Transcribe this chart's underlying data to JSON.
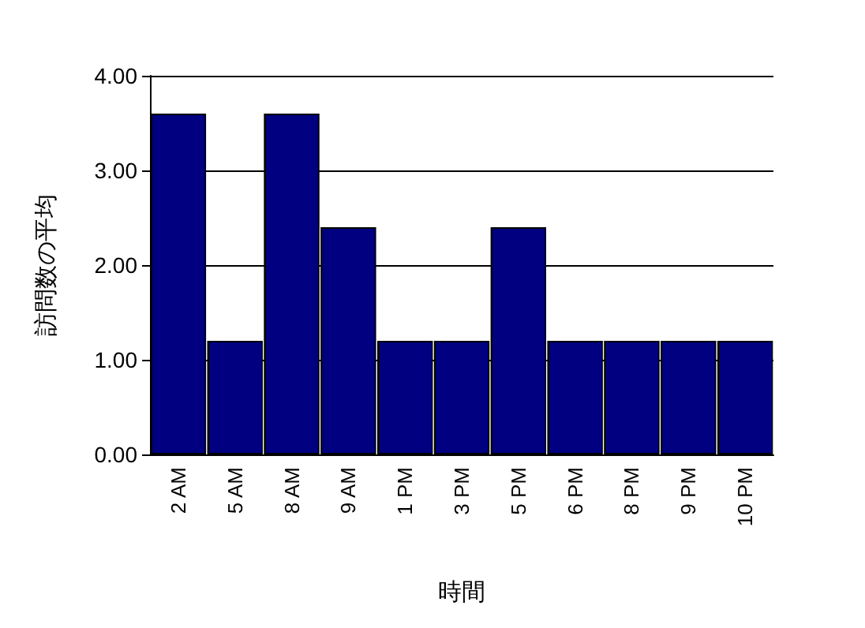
{
  "chart_data": {
    "type": "bar",
    "xlabel": "時間",
    "ylabel": "訪問数の平均",
    "categories": [
      "2 AM",
      "5 AM",
      "8 AM",
      "9 AM",
      "1 PM",
      "3 PM",
      "5 PM",
      "6 PM",
      "8 PM",
      "9 PM",
      "10 PM"
    ],
    "values": [
      3.6,
      1.2,
      3.6,
      2.4,
      1.2,
      1.2,
      2.4,
      1.2,
      1.2,
      1.2,
      1.2
    ],
    "color": "#000080",
    "ylim": [
      0,
      4
    ],
    "yticks": [
      {
        "value": 0,
        "label": "0.00"
      },
      {
        "value": 1,
        "label": "1.00"
      },
      {
        "value": 2,
        "label": "2.00"
      },
      {
        "value": 3,
        "label": "3.00"
      },
      {
        "value": 4,
        "label": "4.00"
      }
    ],
    "grid": "y"
  }
}
